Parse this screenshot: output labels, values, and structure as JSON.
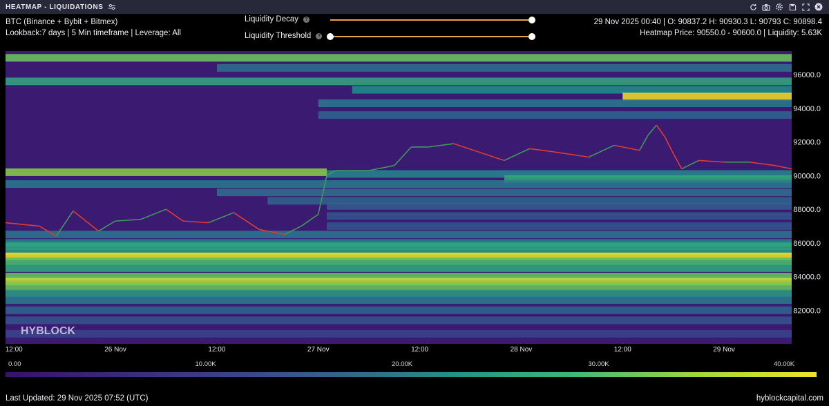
{
  "window": {
    "title": "HEATMAP - LIQUIDATIONS",
    "icons": [
      "refresh-icon",
      "camera-icon",
      "settings-icon",
      "save-icon",
      "expand-icon",
      "close-icon"
    ]
  },
  "info": {
    "line1": "BTC (Binance + Bybit + Bitmex)",
    "line2": "Lookback:7 days | 5 Min timeframe | Leverage: All"
  },
  "controls": {
    "decay_label": "Liquidity Decay",
    "threshold_label": "Liquidity Threshold",
    "help_glyph": "?",
    "decay_value": 1.0,
    "threshold_range": [
      0.0,
      1.0
    ],
    "accent_color": "#e6a244"
  },
  "ohlc": {
    "line1": "29 Nov 2025 00:40 | O: 90837.2 H: 90930.3 L: 90793 C: 90898.4",
    "line2": "Heatmap Price: 90550.0 - 90600.0 | Liquidity: 5.63K"
  },
  "chart_data": {
    "type": "heatmap",
    "x_tick_labels": [
      "12:00",
      "26 Nov",
      "12:00",
      "27 Nov",
      "12:00",
      "28 Nov",
      "12:00",
      "29 Nov"
    ],
    "x_tick_hours": [
      -12,
      0,
      12,
      24,
      36,
      48,
      60,
      72
    ],
    "x_range_hours": [
      -13,
      80
    ],
    "x_origin": "26 Nov 2025 00:00",
    "y_ticks": [
      82000,
      84000,
      86000,
      88000,
      90000,
      92000,
      94000,
      96000
    ],
    "y_tick_labels": [
      "82000.0",
      "84000.0",
      "86000.0",
      "88000.0",
      "90000.0",
      "92000.0",
      "94000.0",
      "96000.0"
    ],
    "ylim": [
      80000,
      97400
    ],
    "colorbar": {
      "ticks": [
        "0.00",
        "10.00K",
        "20.00K",
        "30.00K",
        "40.00K"
      ],
      "range": [
        0,
        40000
      ],
      "colors": [
        "#3b0f70",
        "#3a3d8a",
        "#2e6f8e",
        "#21918c",
        "#3bbb75",
        "#9bd93c",
        "#f7e225"
      ]
    },
    "price_path": {
      "hours": [
        -13,
        -9,
        -7,
        -5,
        -2,
        0,
        3,
        6,
        8,
        11,
        14,
        17,
        20,
        22,
        24,
        25,
        26,
        30,
        33,
        35,
        37,
        40,
        43,
        46,
        49,
        52,
        56,
        59,
        62,
        63,
        64,
        65,
        66,
        67,
        69,
        72,
        75,
        78,
        80
      ],
      "prices": [
        87200,
        87000,
        86400,
        87900,
        86700,
        87300,
        87400,
        88000,
        87300,
        87200,
        87800,
        86800,
        86500,
        87000,
        87700,
        90000,
        90300,
        90300,
        90600,
        91700,
        91700,
        91900,
        91400,
        90900,
        91600,
        91400,
        91100,
        91800,
        91500,
        92400,
        93000,
        92300,
        91300,
        90400,
        90900,
        90800,
        90800,
        90600,
        90400
      ],
      "up_color": "#3e9a5a",
      "down_color": "#e23b2e"
    },
    "liquidity_bands": [
      {
        "price": 97000,
        "value": 30000,
        "hour_start": -13,
        "hour_end": 80
      },
      {
        "price": 96400,
        "value": 14000,
        "hour_start": 12,
        "hour_end": 80
      },
      {
        "price": 95600,
        "value": 24000,
        "hour_start": -13,
        "hour_end": 80
      },
      {
        "price": 95100,
        "value": 20000,
        "hour_start": 28,
        "hour_end": 80
      },
      {
        "price": 94700,
        "value": 40000,
        "hour_start": 60,
        "hour_end": 80
      },
      {
        "price": 94300,
        "value": 16000,
        "hour_start": 24,
        "hour_end": 80
      },
      {
        "price": 93600,
        "value": 12000,
        "hour_start": 24,
        "hour_end": 80
      },
      {
        "price": 90200,
        "value": 32000,
        "hour_start": -13,
        "hour_end": 25
      },
      {
        "price": 90100,
        "value": 18000,
        "hour_start": 25,
        "hour_end": 80
      },
      {
        "price": 89800,
        "value": 24000,
        "hour_start": 46,
        "hour_end": 80
      },
      {
        "price": 89500,
        "value": 16000,
        "hour_start": -13,
        "hour_end": 80
      },
      {
        "price": 89000,
        "value": 14000,
        "hour_start": 12,
        "hour_end": 80
      },
      {
        "price": 88500,
        "value": 12000,
        "hour_start": 18,
        "hour_end": 80
      },
      {
        "price": 88200,
        "value": 11000,
        "hour_start": 25,
        "hour_end": 80
      },
      {
        "price": 87600,
        "value": 10000,
        "hour_start": 25,
        "hour_end": 80
      },
      {
        "price": 87000,
        "value": 10000,
        "hour_start": 25,
        "hour_end": 80
      },
      {
        "price": 86500,
        "value": 15000,
        "hour_start": -13,
        "hour_end": 80
      },
      {
        "price": 86000,
        "value": 18000,
        "hour_start": -13,
        "hour_end": 80
      },
      {
        "price": 85800,
        "value": 24000,
        "hour_start": -13,
        "hour_end": 80
      },
      {
        "price": 85500,
        "value": 22000,
        "hour_start": -13,
        "hour_end": 80
      },
      {
        "price": 85200,
        "value": 40000,
        "hour_start": -13,
        "hour_end": 80
      },
      {
        "price": 84900,
        "value": 28000,
        "hour_start": -13,
        "hour_end": 80
      },
      {
        "price": 84500,
        "value": 24000,
        "hour_start": -13,
        "hour_end": 80
      },
      {
        "price": 84000,
        "value": 30000,
        "hour_start": -13,
        "hour_end": 80
      },
      {
        "price": 83700,
        "value": 36000,
        "hour_start": -13,
        "hour_end": 80
      },
      {
        "price": 83400,
        "value": 30000,
        "hour_start": -13,
        "hour_end": 80
      },
      {
        "price": 83000,
        "value": 22000,
        "hour_start": -13,
        "hour_end": 80
      },
      {
        "price": 82600,
        "value": 16000,
        "hour_start": -13,
        "hour_end": 80
      },
      {
        "price": 82000,
        "value": 12000,
        "hour_start": -13,
        "hour_end": 80
      },
      {
        "price": 81400,
        "value": 10000,
        "hour_start": -13,
        "hour_end": 80
      },
      {
        "price": 80600,
        "value": 8000,
        "hour_start": -13,
        "hour_end": 80
      }
    ],
    "background_color": "#3b1a72",
    "watermark": "HYBLOCK"
  },
  "footer": {
    "updated": "Last Updated: 29 Nov 2025 07:52 (UTC)",
    "site": "hyblockcapital.com"
  }
}
